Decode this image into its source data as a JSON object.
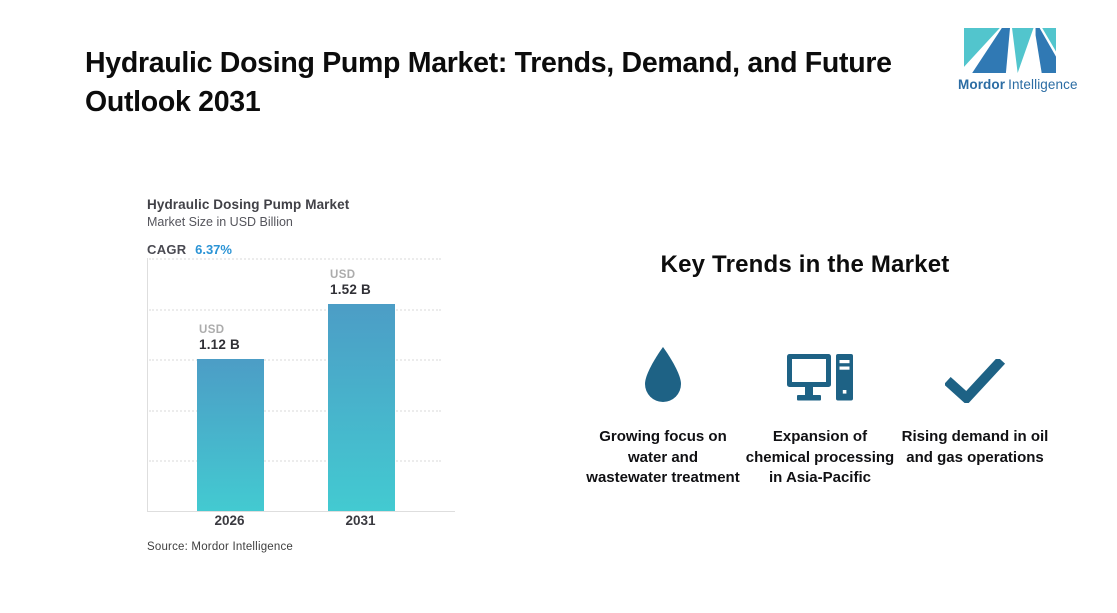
{
  "header": {
    "title": "Hydraulic Dosing Pump Market: Trends, Demand, and Future Outlook 2031",
    "title_lines": [
      "Hydraulic Dosing Pump Market: Trends, Demand, and Future",
      "Outlook 2031"
    ]
  },
  "logo": {
    "brand_bold": "Mordor",
    "brand_regular": "Intelligence",
    "teal": "#52c5cd",
    "blue": "#3079b4",
    "text_color": "#2b6ca3"
  },
  "chart_data": {
    "type": "bar",
    "title": "Hydraulic Dosing Pump Market",
    "subtitle": "Market Size in USD Billion",
    "cagr_label": "CAGR",
    "cagr_value": "6.37%",
    "categories": [
      "2026",
      "2031"
    ],
    "values": [
      1.12,
      1.52
    ],
    "unit": "USD Billion",
    "bars": [
      {
        "prefix": "USD",
        "label": "1.12 B",
        "category": "2026",
        "value": 1.12
      },
      {
        "prefix": "USD",
        "label": "1.52 B",
        "category": "2031",
        "value": 1.52
      }
    ],
    "ylim": [
      0,
      1.86
    ],
    "grid": true,
    "grid_style": "dotted-horizontal",
    "legend": "none",
    "bar_gradient_top": "#4c9dc6",
    "bar_gradient_bottom": "#43cad1",
    "source": "Source: Mordor Intelligence"
  },
  "trends": {
    "heading": "Key Trends in the Market",
    "icon_color": "#1e6285",
    "items": [
      {
        "icon": "water-drop-icon",
        "text": "Growing focus on water and wastewater treatment"
      },
      {
        "icon": "desktop-computer-icon",
        "text": "Expansion of chemical processing in Asia-Pacific"
      },
      {
        "icon": "checkmark-icon",
        "text": "Rising demand in oil and gas operations"
      }
    ]
  }
}
